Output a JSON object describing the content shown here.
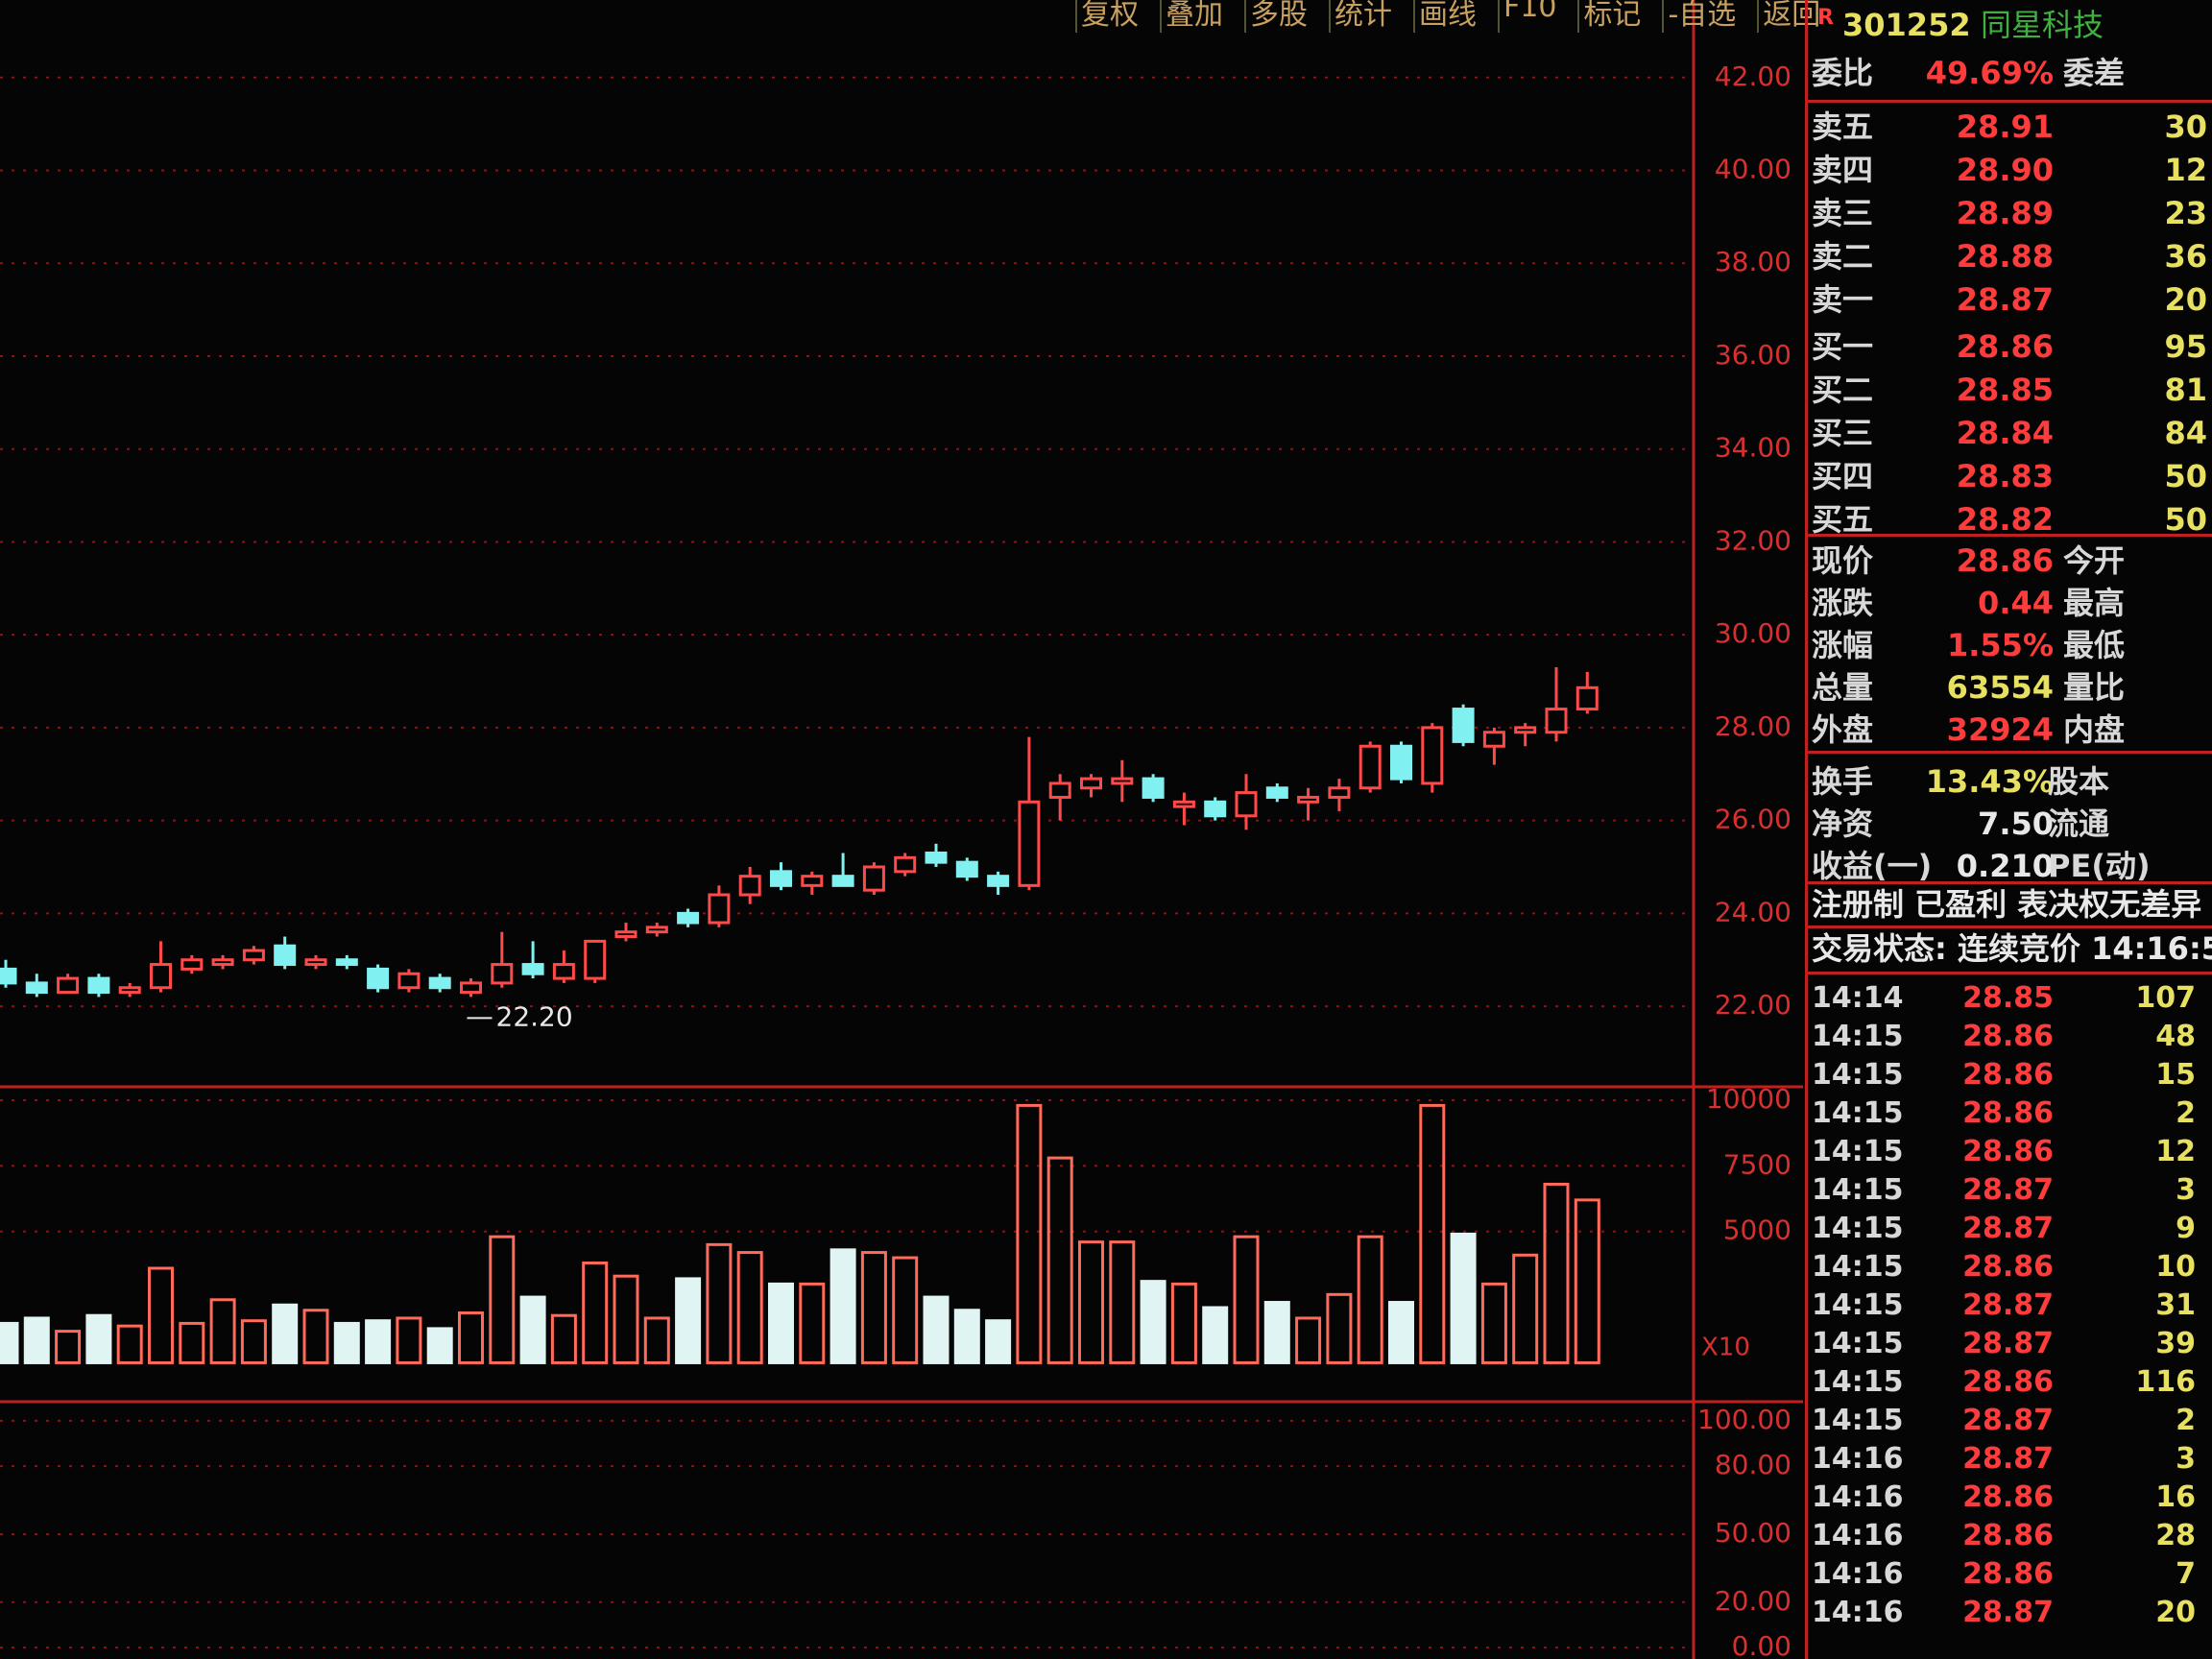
{
  "toolbar": [
    "复权",
    "叠加",
    "多股",
    "统计",
    "画线",
    "F10",
    "标记",
    "-自选",
    "返回"
  ],
  "stock": {
    "flag": "R",
    "code": "301252",
    "name": "同星科技"
  },
  "order_book": {
    "ratio_label": "委比",
    "ratio": "49.69%",
    "diff_label": "委差",
    "rows": [
      {
        "label": "卖五",
        "price": "28.91",
        "volume": "30"
      },
      {
        "label": "卖四",
        "price": "28.90",
        "volume": "12"
      },
      {
        "label": "卖三",
        "price": "28.89",
        "volume": "23"
      },
      {
        "label": "卖二",
        "price": "28.88",
        "volume": "36"
      },
      {
        "label": "卖一",
        "price": "28.87",
        "volume": "20"
      },
      {
        "label": "买一",
        "price": "28.86",
        "volume": "95"
      },
      {
        "label": "买二",
        "price": "28.85",
        "volume": "81"
      },
      {
        "label": "买三",
        "price": "28.84",
        "volume": "84"
      },
      {
        "label": "买四",
        "price": "28.83",
        "volume": "50"
      },
      {
        "label": "买五",
        "price": "28.82",
        "volume": "50"
      }
    ]
  },
  "quote": [
    {
      "label": "现价",
      "value": "28.86",
      "label2": "今开"
    },
    {
      "label": "涨跌",
      "value": "0.44",
      "label2": "最高"
    },
    {
      "label": "涨幅",
      "value": "1.55%",
      "label2": "最低"
    },
    {
      "label": "总量",
      "value": "63554",
      "label2": "量比"
    },
    {
      "label": "外盘",
      "value": "32924",
      "label2": "内盘"
    },
    {
      "label": "换手",
      "value": "13.43%",
      "label2": "股本"
    },
    {
      "label": "净资",
      "value": "7.50",
      "label2": "流通"
    },
    {
      "label": "收益(一)",
      "value": "0.210",
      "label2": "PE(动)"
    }
  ],
  "tags": "注册制 已盈利 表决权无差异",
  "status": "交易状态: 连续竞价 14:16:5",
  "ticks": [
    [
      "14:14",
      "28.85",
      "107"
    ],
    [
      "14:15",
      "28.86",
      "48"
    ],
    [
      "14:15",
      "28.86",
      "15"
    ],
    [
      "14:15",
      "28.86",
      "2"
    ],
    [
      "14:15",
      "28.86",
      "12"
    ],
    [
      "14:15",
      "28.87",
      "3"
    ],
    [
      "14:15",
      "28.87",
      "9"
    ],
    [
      "14:15",
      "28.86",
      "10"
    ],
    [
      "14:15",
      "28.87",
      "31"
    ],
    [
      "14:15",
      "28.87",
      "39"
    ],
    [
      "14:15",
      "28.86",
      "116"
    ],
    [
      "14:15",
      "28.87",
      "2"
    ],
    [
      "14:16",
      "28.87",
      "3"
    ],
    [
      "14:16",
      "28.86",
      "16"
    ],
    [
      "14:16",
      "28.86",
      "28"
    ],
    [
      "14:16",
      "28.86",
      "7"
    ],
    [
      "14:16",
      "28.87",
      "20"
    ]
  ],
  "price_chart": {
    "ylim": [
      20.72,
      43.05
    ],
    "yticks": [
      {
        "value": 22,
        "label": "22.00"
      },
      {
        "value": 24,
        "label": "24.00"
      },
      {
        "value": 26,
        "label": "26.00"
      },
      {
        "value": 28,
        "label": "28.00"
      },
      {
        "value": 30,
        "label": "30.00"
      },
      {
        "value": 32,
        "label": "32.00"
      },
      {
        "value": 34,
        "label": "34.00"
      },
      {
        "value": 36,
        "label": "36.00"
      },
      {
        "value": 38,
        "label": "38.00"
      },
      {
        "value": 40,
        "label": "40.00"
      },
      {
        "value": 42,
        "label": "42.00"
      }
    ],
    "candles": [
      [
        22.8,
        23.0,
        22.4,
        22.5
      ],
      [
        22.5,
        22.7,
        22.2,
        22.3
      ],
      [
        22.3,
        22.7,
        22.3,
        22.6
      ],
      [
        22.6,
        22.7,
        22.2,
        22.3
      ],
      [
        22.3,
        22.5,
        22.2,
        22.4
      ],
      [
        22.4,
        23.4,
        22.3,
        22.9
      ],
      [
        22.8,
        23.1,
        22.7,
        23.0
      ],
      [
        22.9,
        23.1,
        22.8,
        23.0
      ],
      [
        23.0,
        23.3,
        22.9,
        23.2
      ],
      [
        23.3,
        23.5,
        22.8,
        22.9
      ],
      [
        22.9,
        23.1,
        22.8,
        23.0
      ],
      [
        23.0,
        23.1,
        22.8,
        22.9
      ],
      [
        22.8,
        22.9,
        22.3,
        22.4
      ],
      [
        22.4,
        22.8,
        22.3,
        22.7
      ],
      [
        22.6,
        22.7,
        22.3,
        22.4
      ],
      [
        22.3,
        22.6,
        22.2,
        22.5
      ],
      [
        22.5,
        23.6,
        22.4,
        22.9
      ],
      [
        22.9,
        23.4,
        22.6,
        22.7
      ],
      [
        22.6,
        23.2,
        22.5,
        22.9
      ],
      [
        22.6,
        23.4,
        22.5,
        23.4
      ],
      [
        23.5,
        23.8,
        23.4,
        23.6
      ],
      [
        23.6,
        23.8,
        23.5,
        23.7
      ],
      [
        24.0,
        24.1,
        23.7,
        23.8
      ],
      [
        23.8,
        24.6,
        23.7,
        24.4
      ],
      [
        24.4,
        25.0,
        24.2,
        24.8
      ],
      [
        24.9,
        25.1,
        24.5,
        24.6
      ],
      [
        24.6,
        24.9,
        24.4,
        24.8
      ],
      [
        24.8,
        25.3,
        24.6,
        24.6
      ],
      [
        24.5,
        25.1,
        24.4,
        25.0
      ],
      [
        24.9,
        25.3,
        24.8,
        25.2
      ],
      [
        25.3,
        25.5,
        25.0,
        25.1
      ],
      [
        25.1,
        25.2,
        24.7,
        24.8
      ],
      [
        24.8,
        24.9,
        24.4,
        24.6
      ],
      [
        24.6,
        27.8,
        24.5,
        26.4
      ],
      [
        26.5,
        27.0,
        26.0,
        26.8
      ],
      [
        26.7,
        27.0,
        26.5,
        26.9
      ],
      [
        26.8,
        27.3,
        26.4,
        26.9
      ],
      [
        26.9,
        27.0,
        26.4,
        26.5
      ],
      [
        26.3,
        26.6,
        25.9,
        26.4
      ],
      [
        26.4,
        26.5,
        26.0,
        26.1
      ],
      [
        26.1,
        27.0,
        25.8,
        26.6
      ],
      [
        26.7,
        26.8,
        26.4,
        26.5
      ],
      [
        26.4,
        26.7,
        26.0,
        26.5
      ],
      [
        26.5,
        26.9,
        26.2,
        26.7
      ],
      [
        26.7,
        27.7,
        26.6,
        27.6
      ],
      [
        27.6,
        27.7,
        26.8,
        26.9
      ],
      [
        26.8,
        28.1,
        26.6,
        28.0
      ],
      [
        28.4,
        28.5,
        27.6,
        27.7
      ],
      [
        27.6,
        28.0,
        27.2,
        27.9
      ],
      [
        27.9,
        28.1,
        27.6,
        28.0
      ],
      [
        27.9,
        29.3,
        27.7,
        28.4
      ],
      [
        28.4,
        29.2,
        28.3,
        28.86
      ]
    ],
    "low_label": "22.20",
    "low_index": 15
  },
  "volume_chart": {
    "ylim": [
      -1300,
      10400
    ],
    "yticks": [
      5000,
      7500,
      10000
    ],
    "unit_label": "X10",
    "values": [
      1500,
      1700,
      1200,
      1800,
      1400,
      3600,
      1500,
      2400,
      1600,
      2200,
      2000,
      1500,
      1600,
      1700,
      1300,
      1900,
      4800,
      2500,
      1800,
      3800,
      3300,
      1700,
      3200,
      4500,
      4200,
      3000,
      3000,
      4300,
      4200,
      4000,
      2500,
      2000,
      1600,
      9800,
      7800,
      4600,
      4600,
      3100,
      3000,
      2100,
      4800,
      2300,
      1700,
      2600,
      4800,
      2300,
      9800,
      4900,
      3000,
      4100,
      6800,
      6200
    ]
  },
  "kdj_chart": {
    "ylim": [
      -5,
      105
    ],
    "yticks": [
      {
        "value": 0,
        "label": "0.00"
      },
      {
        "value": 20,
        "label": "20.00"
      },
      {
        "value": 50,
        "label": "50.00"
      },
      {
        "value": 80,
        "label": "80.00"
      },
      {
        "value": 100,
        "label": "100.00"
      }
    ]
  }
}
